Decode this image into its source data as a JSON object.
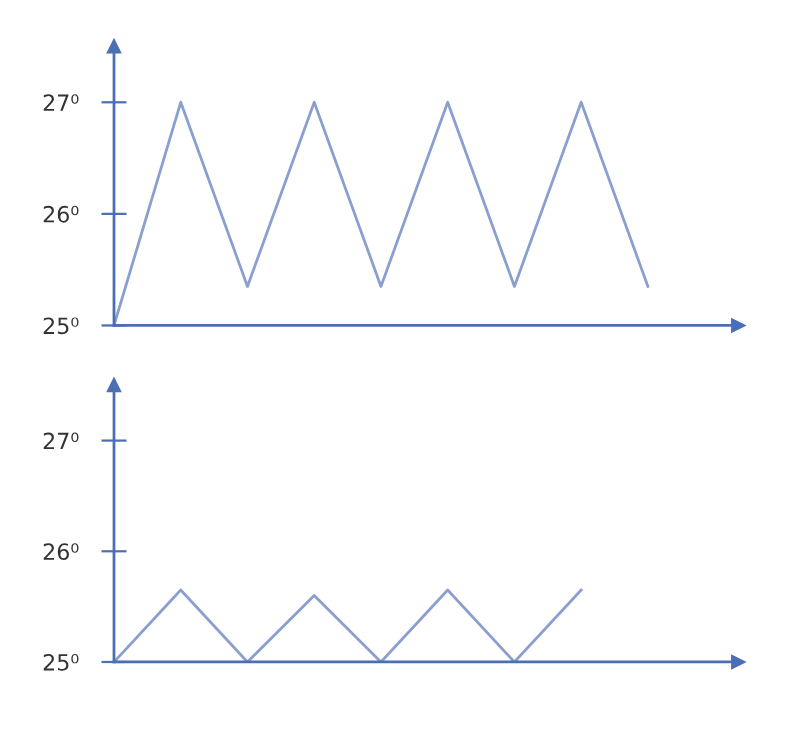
{
  "chart_data": [
    {
      "type": "line",
      "categories": [
        null,
        null,
        null,
        null,
        null,
        null,
        null,
        null,
        null
      ],
      "series": [
        {
          "color": "#8a9fd0",
          "values": [
            25,
            27,
            25.35,
            27,
            25.35,
            27,
            25.35,
            27,
            25.35
          ]
        }
      ],
      "ylim": [
        25,
        27.5
      ],
      "yticks": [
        {
          "value": 25,
          "label": "25⁰"
        },
        {
          "value": 26,
          "label": "26⁰"
        },
        {
          "value": 27,
          "label": "27⁰"
        }
      ],
      "grid": false,
      "marker": "none",
      "line_style": "solid"
    },
    {
      "type": "line",
      "categories": [
        null,
        null,
        null,
        null,
        null,
        null,
        null,
        null
      ],
      "series": [
        {
          "color": "#8a9fd0",
          "values": [
            25,
            25.65,
            25,
            25.6,
            25,
            25.65,
            25,
            25.65
          ]
        }
      ],
      "ylim": [
        25,
        27.5
      ],
      "yticks": [
        {
          "value": 25,
          "label": "25⁰"
        },
        {
          "value": 26,
          "label": "26⁰"
        },
        {
          "value": 27,
          "label": "27⁰"
        }
      ],
      "grid": false,
      "marker": "none",
      "line_style": "solid"
    }
  ]
}
